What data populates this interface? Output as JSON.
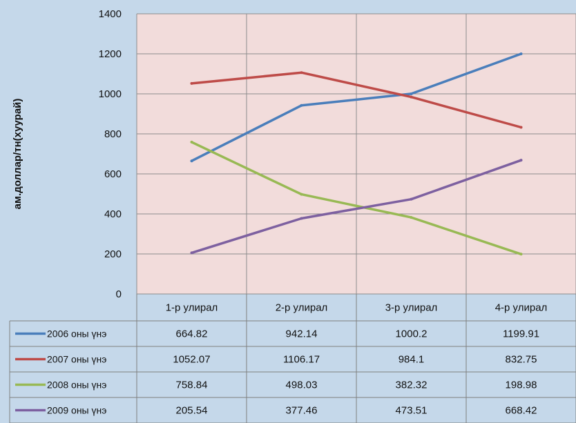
{
  "chart_data": {
    "type": "line",
    "ylabel": "ам.доллар/тн(хуурай)",
    "ylim": [
      0,
      1400
    ],
    "yticks": [
      0,
      200,
      400,
      600,
      800,
      1000,
      1200,
      1400
    ],
    "grid": true,
    "categories": [
      "1-р улирал",
      "2-р улирал",
      "3-р улирал",
      "4-р улирал"
    ],
    "series": [
      {
        "name": "2006 оны үнэ",
        "color": "#4a7ebb",
        "values": [
          664.82,
          942.14,
          1000.2,
          1199.91
        ],
        "labels": [
          "664.82",
          "942.14",
          "1000.2",
          "1199.91"
        ]
      },
      {
        "name": "2007 оны үнэ",
        "color": "#be4b48",
        "values": [
          1052.07,
          1106.17,
          984.1,
          832.75
        ],
        "labels": [
          "1052.07",
          "1106.17",
          "984.1",
          "832.75"
        ]
      },
      {
        "name": "2008 оны үнэ",
        "color": "#98b954",
        "values": [
          758.84,
          498.03,
          382.32,
          198.98
        ],
        "labels": [
          "758.84",
          "498.03",
          "382.32",
          "198.98"
        ]
      },
      {
        "name": "2009 оны үнэ",
        "color": "#7d60a0",
        "values": [
          205.54,
          377.46,
          473.51,
          668.42
        ],
        "labels": [
          "205.54",
          "377.46",
          "473.51",
          "668.42"
        ]
      }
    ]
  }
}
